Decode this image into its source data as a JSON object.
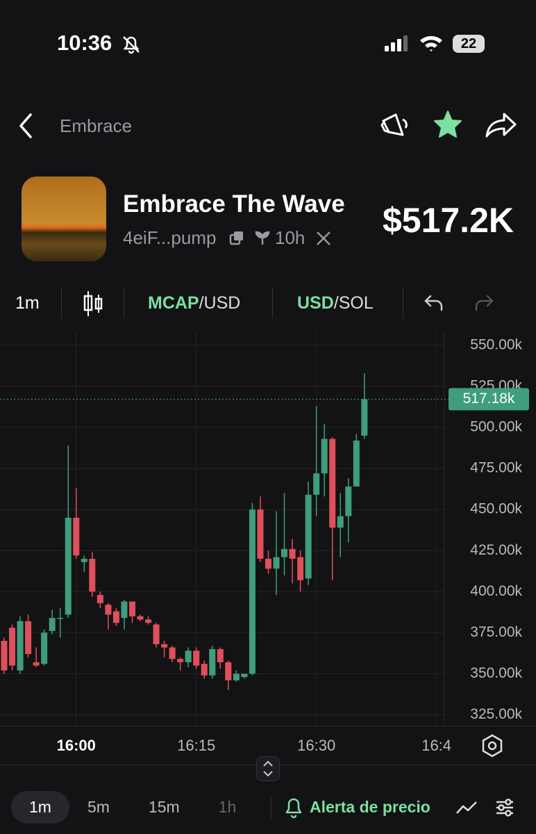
{
  "status_bar": {
    "time": "10:36",
    "battery": "22"
  },
  "nav": {
    "title": "Embrace"
  },
  "token": {
    "name": "Embrace The Wave",
    "address": "4eiF...pump",
    "age": "10h",
    "price": "$517.2K"
  },
  "toolbar": {
    "interval": "1m",
    "mcap": "MCAP",
    "mcap_unit": "/USD",
    "usd": "USD",
    "usd_unit": "/SOL"
  },
  "chart": {
    "type": "candlestick",
    "up_color": "#3f9e7c",
    "down_color": "#e0505a",
    "grid": true,
    "categories": [
      null,
      null,
      null,
      null,
      null,
      null,
      null,
      null,
      null,
      "16:00",
      null,
      null,
      null,
      null,
      null,
      null,
      null,
      null,
      null,
      null,
      null,
      null,
      null,
      null,
      "16:15",
      null,
      null,
      null,
      null,
      null,
      null,
      null,
      null,
      null,
      null,
      null,
      null,
      null,
      null,
      "16:30",
      null,
      null,
      null,
      null,
      null,
      null,
      null,
      null,
      null,
      null,
      null,
      null,
      null,
      null,
      "16:4"
    ],
    "open": [
      370,
      378,
      352,
      382,
      357,
      356,
      376,
      384,
      386,
      445,
      418,
      420,
      398,
      392,
      388,
      384,
      394,
      385,
      383,
      380,
      368,
      366,
      359,
      357,
      364,
      356,
      349,
      365,
      357,
      346,
      348,
      350,
      450,
      420,
      414,
      421,
      426,
      421,
      408,
      459,
      472,
      493,
      439,
      446,
      464,
      495,
      null,
      null,
      null,
      null,
      null,
      null,
      null,
      null,
      null
    ],
    "high": [
      372,
      380,
      385,
      386,
      366,
      377,
      389,
      390,
      489,
      463,
      422,
      424,
      400,
      393,
      390,
      395,
      394,
      386,
      385,
      381,
      370,
      367,
      360,
      366,
      366,
      358,
      367,
      366,
      358,
      352,
      350,
      454,
      458,
      425,
      449,
      460,
      432,
      425,
      467,
      513,
      502,
      494,
      460,
      469,
      496,
      533,
      null,
      null,
      null,
      null,
      null,
      null,
      null,
      null,
      null
    ],
    "low": [
      350,
      352,
      350,
      360,
      354,
      355,
      374,
      372,
      384,
      420,
      412,
      397,
      390,
      377,
      379,
      377,
      381,
      382,
      380,
      366,
      360,
      357,
      352,
      354,
      353,
      347,
      347,
      353,
      340,
      345,
      347,
      349,
      418,
      411,
      398,
      410,
      405,
      400,
      404,
      446,
      458,
      407,
      421,
      430,
      465,
      493,
      null,
      null,
      null,
      null,
      null,
      null,
      null,
      null,
      null
    ],
    "close": [
      352,
      355,
      382,
      362,
      355,
      375,
      384,
      384,
      445,
      422,
      420,
      400,
      393,
      386,
      381,
      394,
      385,
      383,
      381,
      368,
      366,
      359,
      357,
      364,
      355,
      349,
      365,
      357,
      346,
      350,
      350,
      450,
      420,
      414,
      421,
      426,
      420,
      407,
      459,
      472,
      493,
      439,
      446,
      464,
      492,
      517.18,
      null,
      null,
      null,
      null,
      null,
      null,
      null,
      null,
      null
    ],
    "ylim": [
      318,
      558
    ],
    "yticks": [
      {
        "value": 325,
        "label": "325.00k"
      },
      {
        "value": 350,
        "label": "350.00k"
      },
      {
        "value": 375,
        "label": "375.00k"
      },
      {
        "value": 400,
        "label": "400.00k"
      },
      {
        "value": 425,
        "label": "425.00k"
      },
      {
        "value": 450,
        "label": "450.00k"
      },
      {
        "value": 475,
        "label": "475.00k"
      },
      {
        "value": 500,
        "label": "500.00k"
      },
      {
        "value": 525,
        "label": "525.00k"
      },
      {
        "value": 550,
        "label": "550.00k"
      }
    ],
    "last_price": {
      "value": 517.18,
      "label": "517.18k"
    }
  },
  "bottom_bar": {
    "intervals": [
      "1m",
      "5m",
      "15m",
      "1h"
    ],
    "alert": "Alerta de precio"
  }
}
